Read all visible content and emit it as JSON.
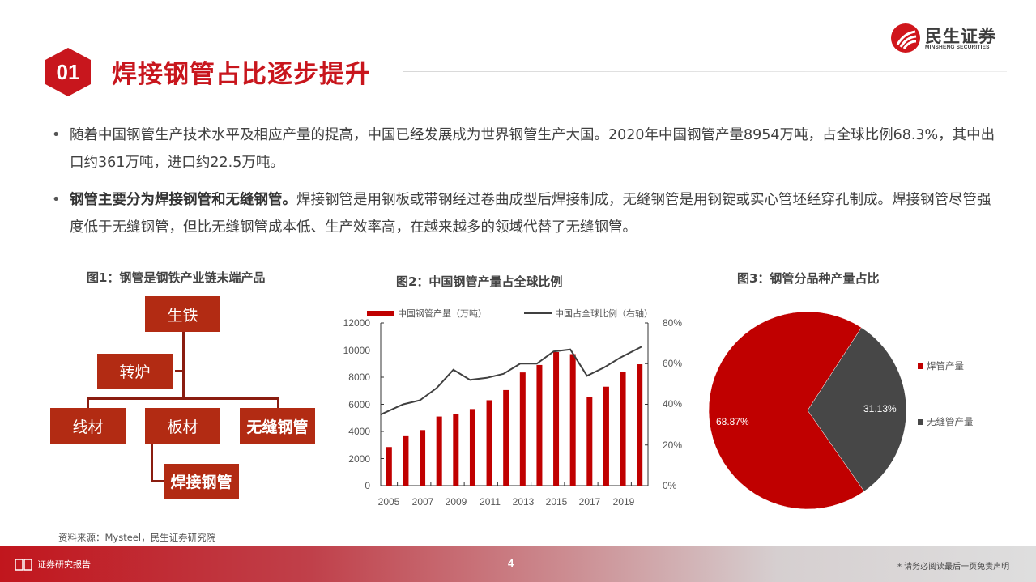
{
  "header": {
    "section_number": "01",
    "title": "焊接钢管占比逐步提升",
    "logo_cn": "民生证券",
    "logo_en": "MINSHENG SECURITIES"
  },
  "bullets": [
    {
      "bold": "",
      "text": "随着中国钢管生产技术水平及相应产量的提高，中国已经发展成为世界钢管生产大国。2020年中国钢管产量8954万吨，占全球比例68.3%，其中出口约361万吨，进口约22.5万吨。"
    },
    {
      "bold": "钢管主要分为焊接钢管和无缝钢管。",
      "text": "焊接钢管是用钢板或带钢经过卷曲成型后焊接制成，无缝钢管是用钢锭或实心管坯经穿孔制成。焊接钢管尽管强度低于无缝钢管，但比无缝钢管成本低、生产效率高，在越来越多的领域代替了无缝钢管。"
    }
  ],
  "figure1": {
    "title": "图1：钢管是钢铁产业链末端产品",
    "nodes": {
      "pig_iron": "生铁",
      "converter": "转炉",
      "wire": "线材",
      "plate": "板材",
      "seamless": "无缝钢管",
      "welded": "焊接钢管"
    }
  },
  "figure2": {
    "title": "图2：中国钢管产量占全球比例",
    "legend_bar": "中国钢管产量（万吨）",
    "legend_line": "中国占全球比例（右轴）",
    "y_left_ticks": [
      "12000",
      "10000",
      "8000",
      "6000",
      "4000",
      "2000",
      "0"
    ],
    "y_right_ticks": [
      "80%",
      "60%",
      "40%",
      "20%",
      "0%"
    ],
    "x_ticks": [
      "2005",
      "2007",
      "2009",
      "2011",
      "2013",
      "2015",
      "2017",
      "2019"
    ]
  },
  "figure3": {
    "title": "图3：钢管分品种产量占比",
    "slices": [
      {
        "label": "焊管产量",
        "value": "68.87%",
        "color": "#c00000"
      },
      {
        "label": "无缝管产量",
        "value": "31.13%",
        "color": "#474747"
      }
    ]
  },
  "chart_data": [
    {
      "type": "bar+line",
      "title": "图2：中国钢管产量占全球比例",
      "categories": [
        "2005",
        "2006",
        "2007",
        "2008",
        "2009",
        "2010",
        "2011",
        "2012",
        "2013",
        "2014",
        "2015",
        "2016",
        "2017",
        "2018",
        "2019",
        "2020"
      ],
      "series": [
        {
          "name": "中国钢管产量（万吨）",
          "type": "bar",
          "axis": "left",
          "color": "#c00000",
          "values": [
            2850,
            3650,
            4100,
            5100,
            5300,
            5650,
            6300,
            7050,
            8350,
            8900,
            9850,
            9700,
            6550,
            7300,
            8400,
            8954
          ]
        },
        {
          "name": "中国占全球比例（右轴）",
          "type": "line",
          "axis": "right",
          "color": "#404040",
          "values": [
            35,
            40,
            42,
            48,
            57,
            52,
            53,
            55,
            60,
            60,
            66,
            67,
            54,
            58,
            63,
            68.3
          ]
        }
      ],
      "ylim_left": [
        0,
        12000
      ],
      "ylim_right": [
        0,
        80
      ],
      "ylabel_right_unit": "%",
      "legend_position": "top",
      "grid": false
    },
    {
      "type": "pie",
      "title": "图3：钢管分品种产量占比",
      "categories": [
        "焊管产量",
        "无缝管产量"
      ],
      "values": [
        68.87,
        31.13
      ],
      "colors": [
        "#c00000",
        "#474747"
      ],
      "legend_position": "right"
    }
  ],
  "source": "资料来源：Mysteel，民生证券研究院",
  "footer": {
    "label": "证券研究报告",
    "page": "4",
    "disclaimer": "* 请务必阅读最后一页免责声明"
  },
  "colors": {
    "brand_red": "#c8161d",
    "box_red": "#b22b13",
    "bar_red": "#c00000",
    "dark_gray": "#474747"
  }
}
